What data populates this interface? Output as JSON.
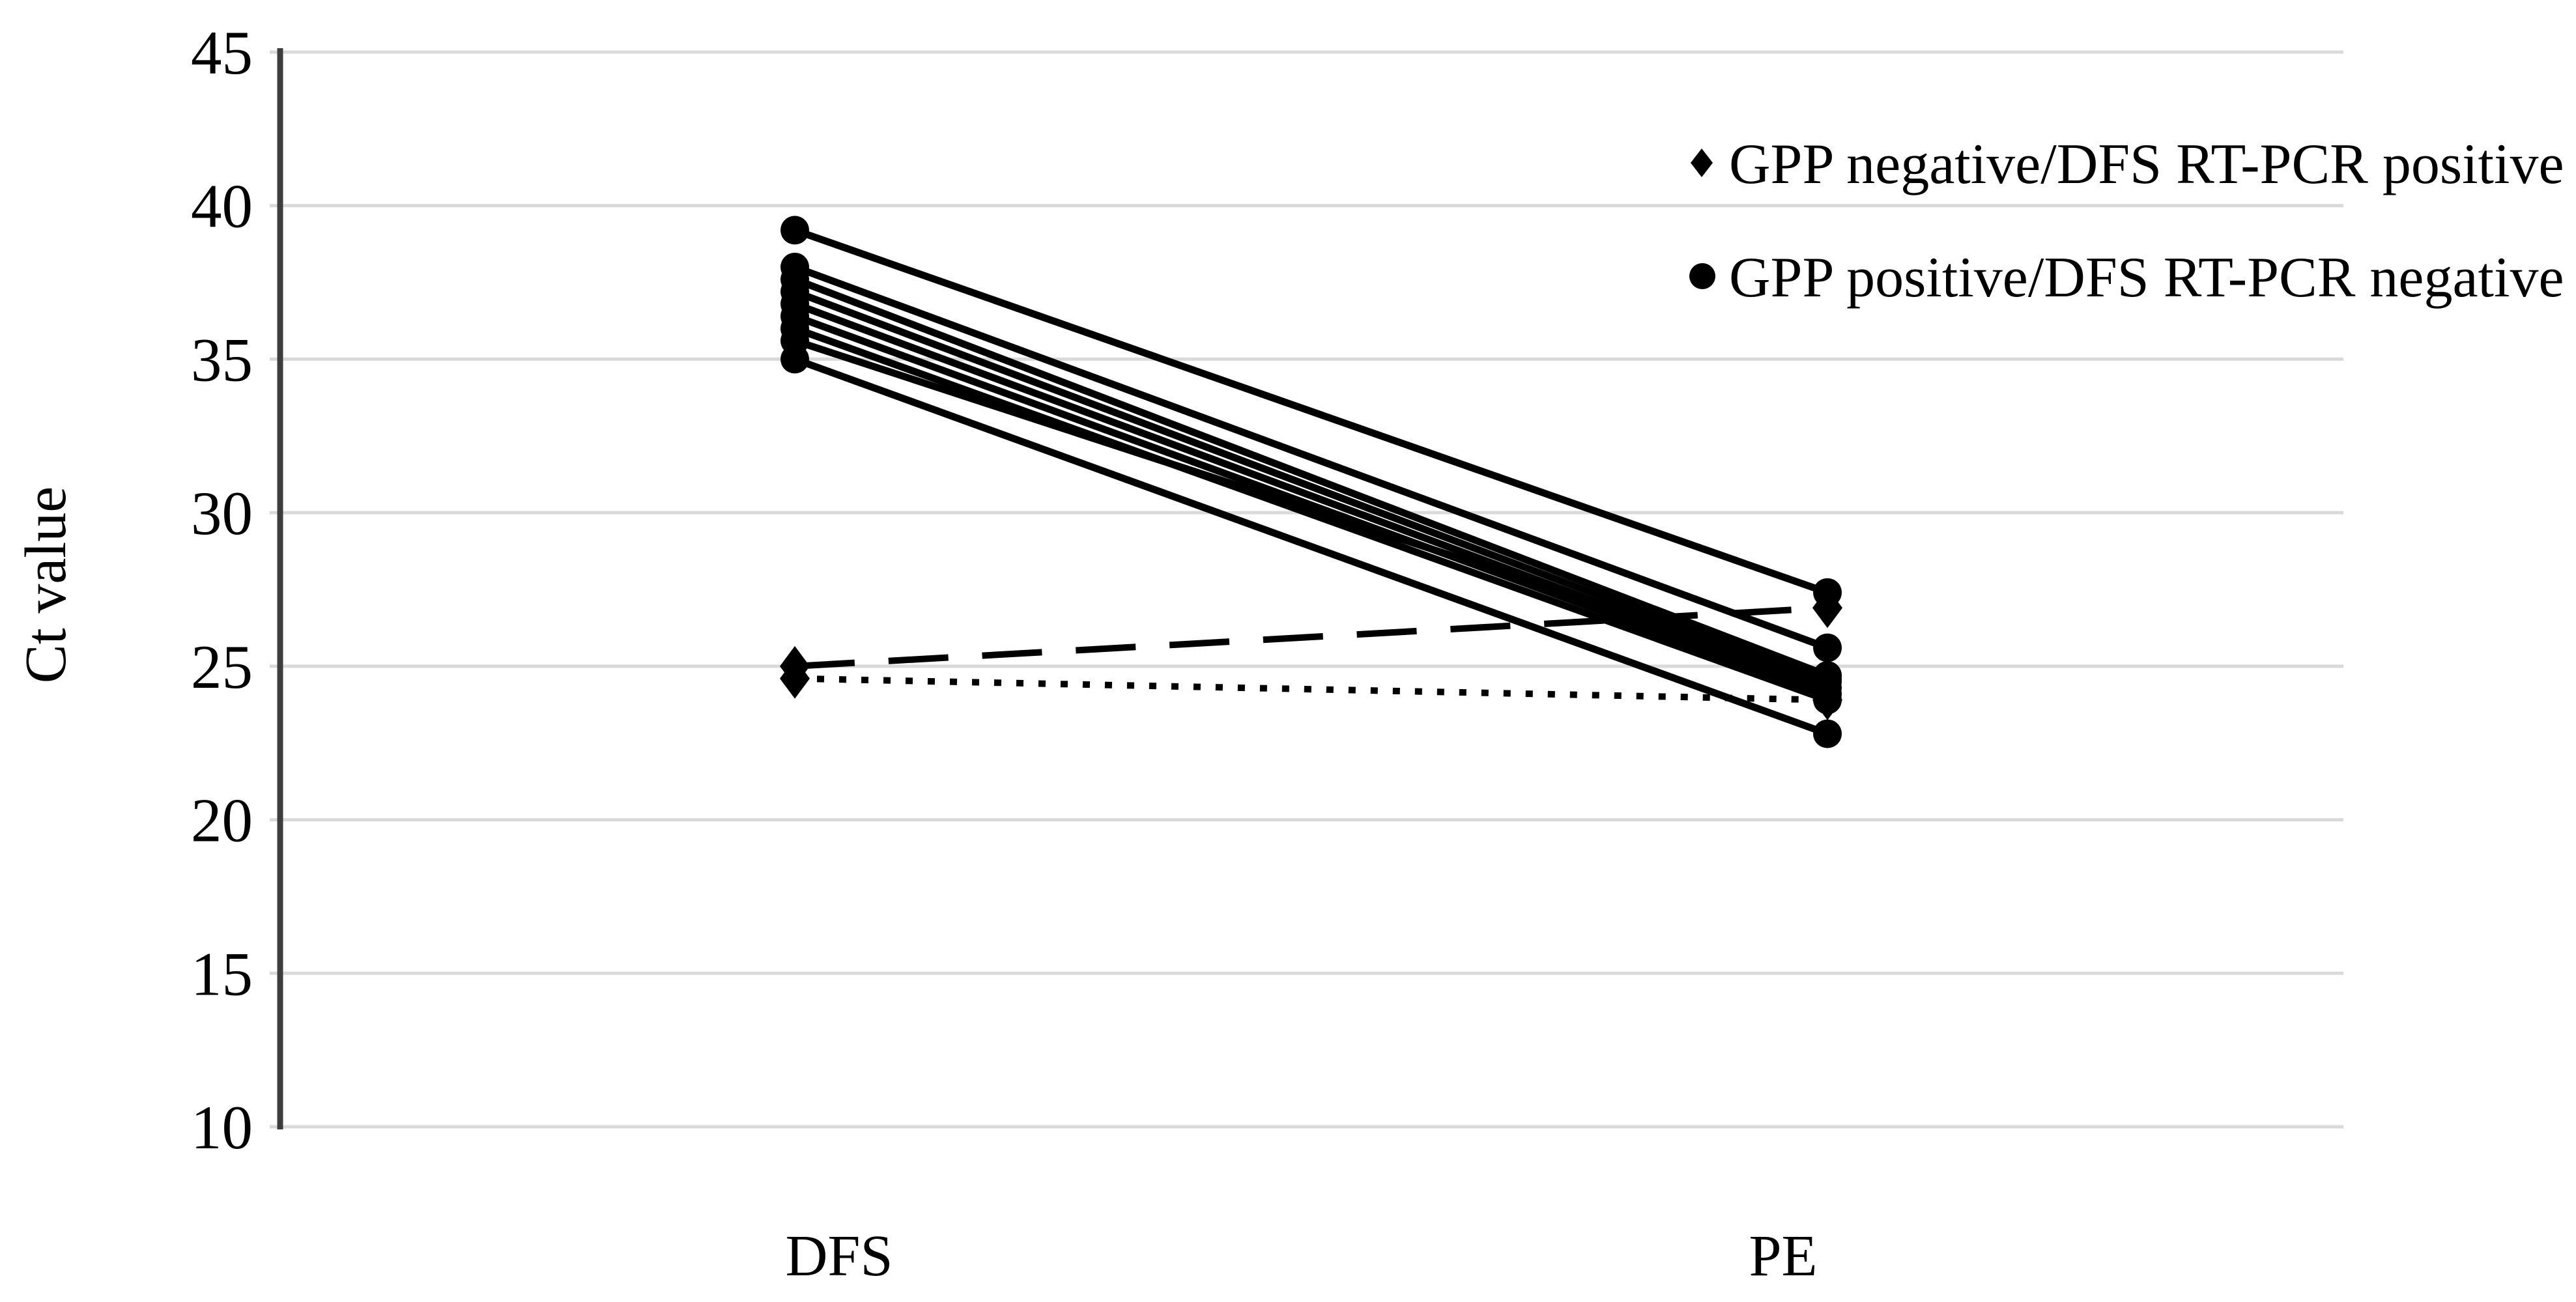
{
  "figure": {
    "background": "#ffffff",
    "y_axis_title": "Ct value",
    "x_categories": [
      "DFS",
      "PE"
    ]
  },
  "chart_data": {
    "type": "line",
    "subtype": "paired-slope-chart",
    "title": "",
    "xlabel": "",
    "ylabel": "Ct value",
    "categories": [
      "DFS",
      "PE"
    ],
    "ylim": [
      10,
      45
    ],
    "yticks": [
      45,
      40,
      35,
      30,
      25,
      20,
      15,
      10
    ],
    "grid": "horizontal-only",
    "legend_position": "top-right",
    "legend": [
      {
        "marker": "diamond",
        "label": "GPP negative/DFS RT-PCR positive"
      },
      {
        "marker": "circle",
        "label": "GPP positive/DFS RT-PCR negative"
      }
    ],
    "series": [
      {
        "name": "solid-line-1",
        "style": "solid",
        "marker": "circle",
        "values": [
          39.2,
          27.4
        ]
      },
      {
        "name": "solid-line-2",
        "style": "solid",
        "marker": "circle",
        "values": [
          38.0,
          25.6
        ]
      },
      {
        "name": "solid-line-3",
        "style": "solid",
        "marker": "circle",
        "values": [
          37.6,
          24.7
        ]
      },
      {
        "name": "solid-line-4",
        "style": "solid",
        "marker": "circle",
        "values": [
          37.2,
          24.5
        ]
      },
      {
        "name": "solid-line-5",
        "style": "solid",
        "marker": "circle",
        "values": [
          36.8,
          24.3
        ]
      },
      {
        "name": "solid-line-6",
        "style": "solid",
        "marker": "circle",
        "values": [
          36.4,
          24.1
        ]
      },
      {
        "name": "solid-line-7",
        "style": "solid",
        "marker": "circle",
        "values": [
          36.0,
          23.9
        ]
      },
      {
        "name": "solid-line-8",
        "style": "solid",
        "marker": "circle",
        "values": [
          35.6,
          24.6
        ]
      },
      {
        "name": "solid-line-9",
        "style": "solid",
        "marker": "circle",
        "values": [
          35.0,
          22.8
        ]
      },
      {
        "name": "dashed-line",
        "style": "dashed",
        "marker": "diamond",
        "values": [
          25.0,
          26.9
        ]
      },
      {
        "name": "dotted-line",
        "style": "dotted",
        "marker": "diamond",
        "values": [
          24.6,
          23.9
        ]
      }
    ],
    "colors": {
      "line": "#000000",
      "marker": "#000000",
      "gridline": "#d9d9d9",
      "axis": "#3d3d3d",
      "text": "#000000",
      "background": "#ffffff"
    }
  }
}
